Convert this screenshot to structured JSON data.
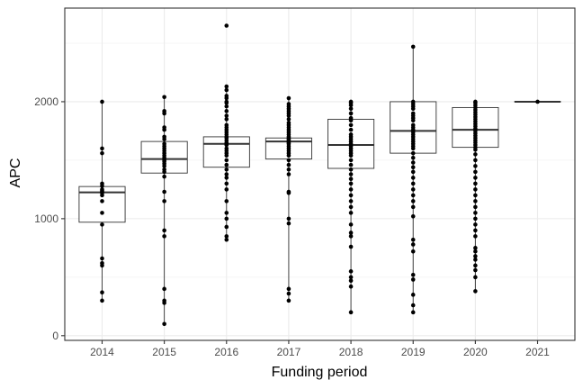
{
  "chart_data": {
    "type": "boxplot",
    "title": "",
    "xlabel": "Funding period",
    "ylabel": "APC",
    "categories": [
      "2014",
      "2015",
      "2016",
      "2017",
      "2018",
      "2019",
      "2020",
      "2021"
    ],
    "y_ticks": [
      0,
      1000,
      2000
    ],
    "y_tick_labels": [
      "0",
      "1000",
      "2000"
    ],
    "ylim": [
      -40,
      2800
    ],
    "grid": true,
    "theme": "black-and-white",
    "colors": {
      "box_line": "#333333",
      "point": "#000000",
      "grid": "#ebebeb",
      "panel_border": "#333333"
    },
    "boxes": [
      {
        "category": "2014",
        "q1": 970,
        "median": 1225,
        "q3": 1275,
        "whisker_low": 290,
        "whisker_high": 2000
      },
      {
        "category": "2015",
        "q1": 1390,
        "median": 1510,
        "q3": 1660,
        "whisker_low": 100,
        "whisker_high": 2040
      },
      {
        "category": "2016",
        "q1": 1440,
        "median": 1640,
        "q3": 1700,
        "whisker_low": 820,
        "whisker_high": 2130
      },
      {
        "category": "2017",
        "q1": 1510,
        "median": 1660,
        "q3": 1690,
        "whisker_low": 300,
        "whisker_high": 2030
      },
      {
        "category": "2018",
        "q1": 1430,
        "median": 1630,
        "q3": 1850,
        "whisker_low": 200,
        "whisker_high": 2000
      },
      {
        "category": "2019",
        "q1": 1560,
        "median": 1750,
        "q3": 2000,
        "whisker_low": 200,
        "whisker_high": 2470
      },
      {
        "category": "2020",
        "q1": 1610,
        "median": 1760,
        "q3": 1950,
        "whisker_low": 380,
        "whisker_high": 2000
      },
      {
        "category": "2021",
        "q1": 2000,
        "median": 2000,
        "q3": 2000,
        "whisker_low": 2000,
        "whisker_high": 2000
      }
    ],
    "points": [
      {
        "category": "2014",
        "values": [
          2000,
          1600,
          1560,
          1300,
          1280,
          1250,
          1240,
          1230,
          1220,
          1200,
          1150,
          1050,
          950,
          660,
          620,
          600,
          370,
          300
        ]
      },
      {
        "category": "2015",
        "values": [
          2040,
          1920,
          1900,
          1780,
          1760,
          1700,
          1680,
          1640,
          1620,
          1600,
          1580,
          1560,
          1540,
          1520,
          1500,
          1490,
          1470,
          1450,
          1420,
          1400,
          1360,
          1230,
          1150,
          900,
          850,
          400,
          300,
          280,
          100
        ]
      },
      {
        "category": "2016",
        "values": [
          2650,
          2130,
          2100,
          2050,
          2030,
          2000,
          1990,
          1960,
          1920,
          1880,
          1850,
          1800,
          1780,
          1760,
          1740,
          1720,
          1700,
          1690,
          1670,
          1650,
          1640,
          1630,
          1600,
          1580,
          1560,
          1540,
          1500,
          1460,
          1420,
          1380,
          1350,
          1300,
          1250,
          1150,
          1050,
          1000,
          930,
          850,
          820
        ]
      },
      {
        "category": "2017",
        "values": [
          2030,
          1980,
          1960,
          1940,
          1920,
          1900,
          1880,
          1850,
          1820,
          1800,
          1780,
          1760,
          1740,
          1720,
          1700,
          1690,
          1680,
          1670,
          1660,
          1650,
          1640,
          1620,
          1600,
          1580,
          1560,
          1540,
          1500,
          1460,
          1420,
          1380,
          1230,
          1220,
          1000,
          960,
          400,
          360,
          300
        ]
      },
      {
        "category": "2018",
        "values": [
          2000,
          1990,
          1970,
          1940,
          1900,
          1860,
          1840,
          1800,
          1760,
          1720,
          1700,
          1680,
          1660,
          1640,
          1620,
          1600,
          1580,
          1560,
          1540,
          1500,
          1460,
          1420,
          1380,
          1340,
          1300,
          1250,
          1200,
          1150,
          1100,
          1050,
          950,
          880,
          850,
          760,
          550,
          500,
          470,
          420,
          200
        ]
      },
      {
        "category": "2019",
        "values": [
          2470,
          2000,
          1980,
          1960,
          1940,
          1900,
          1880,
          1860,
          1840,
          1800,
          1780,
          1760,
          1740,
          1720,
          1700,
          1680,
          1660,
          1640,
          1620,
          1600,
          1560,
          1520,
          1480,
          1440,
          1400,
          1350,
          1300,
          1250,
          1200,
          1150,
          1100,
          1020,
          820,
          780,
          720,
          520,
          480,
          350,
          260,
          200
        ]
      },
      {
        "category": "2020",
        "values": [
          2000,
          1990,
          1970,
          1950,
          1930,
          1910,
          1890,
          1870,
          1850,
          1830,
          1810,
          1790,
          1770,
          1750,
          1730,
          1710,
          1690,
          1670,
          1650,
          1630,
          1610,
          1590,
          1550,
          1500,
          1450,
          1400,
          1350,
          1300,
          1250,
          1200,
          1150,
          1100,
          1050,
          1000,
          950,
          900,
          850,
          750,
          720,
          680,
          650,
          600,
          560,
          500,
          380
        ]
      },
      {
        "category": "2021",
        "values": [
          2000
        ]
      }
    ]
  }
}
